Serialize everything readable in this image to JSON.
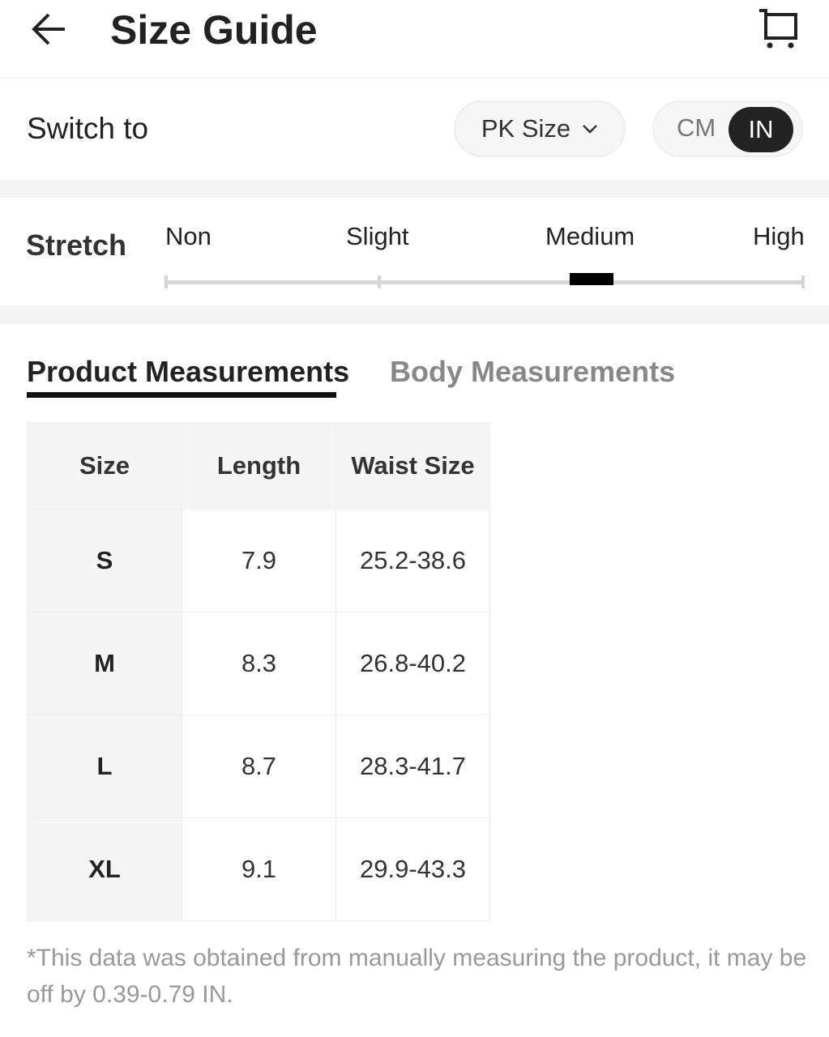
{
  "header": {
    "title": "Size Guide",
    "back_icon": "arrow-left-icon",
    "cart_icon": "cart-icon"
  },
  "switch": {
    "label": "Switch to",
    "size_system": "PK Size",
    "units": [
      "CM",
      "IN"
    ],
    "selected_unit": "IN"
  },
  "stretch": {
    "label": "Stretch",
    "levels": [
      "Non",
      "Slight",
      "Medium",
      "High"
    ],
    "selected": "Medium"
  },
  "tabs": [
    {
      "label": "Product Measurements",
      "active": true
    },
    {
      "label": "Body Measurements",
      "active": false
    }
  ],
  "table": {
    "headers": [
      "Size",
      "Length",
      "Waist Size"
    ],
    "rows": [
      [
        "S",
        "7.9",
        "25.2-38.6"
      ],
      [
        "M",
        "8.3",
        "26.8-40.2"
      ],
      [
        "L",
        "8.7",
        "28.3-41.7"
      ],
      [
        "XL",
        "9.1",
        "29.9-43.3"
      ]
    ]
  },
  "note": "*This data was obtained from manually measuring the product, it may be off by 0.39-0.79 IN."
}
